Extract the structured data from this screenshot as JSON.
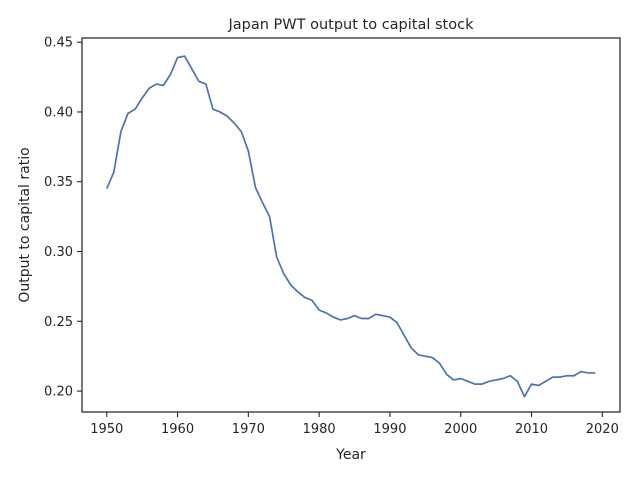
{
  "chart_data": {
    "type": "line",
    "title": "Japan PWT output to capital stock",
    "xlabel": "Year",
    "ylabel": "Output to capital ratio",
    "xlim": [
      1946.5,
      2022.5
    ],
    "ylim": [
      0.185,
      0.453
    ],
    "xticks": [
      1950,
      1960,
      1970,
      1980,
      1990,
      2000,
      2010,
      2020
    ],
    "yticks": [
      0.2,
      0.25,
      0.3,
      0.35,
      0.4,
      0.45
    ],
    "ytick_labels": [
      "0.20",
      "0.25",
      "0.30",
      "0.35",
      "0.40",
      "0.45"
    ],
    "grid": false,
    "series": [
      {
        "color": "#4c72b0",
        "x": [
          1950,
          1951,
          1952,
          1953,
          1954,
          1955,
          1956,
          1957,
          1958,
          1959,
          1960,
          1961,
          1962,
          1963,
          1964,
          1965,
          1966,
          1967,
          1968,
          1969,
          1970,
          1971,
          1972,
          1973,
          1974,
          1975,
          1976,
          1977,
          1978,
          1979,
          1980,
          1981,
          1982,
          1983,
          1984,
          1985,
          1986,
          1987,
          1988,
          1989,
          1990,
          1991,
          1992,
          1993,
          1994,
          1995,
          1996,
          1997,
          1998,
          1999,
          2000,
          2001,
          2002,
          2003,
          2004,
          2005,
          2006,
          2007,
          2008,
          2009,
          2010,
          2011,
          2012,
          2013,
          2014,
          2015,
          2016,
          2017,
          2018,
          2019
        ],
        "y": [
          0.345,
          0.357,
          0.386,
          0.399,
          0.402,
          0.41,
          0.417,
          0.42,
          0.419,
          0.427,
          0.439,
          0.44,
          0.431,
          0.422,
          0.42,
          0.402,
          0.4,
          0.397,
          0.392,
          0.386,
          0.372,
          0.346,
          0.335,
          0.325,
          0.296,
          0.284,
          0.276,
          0.271,
          0.267,
          0.265,
          0.258,
          0.256,
          0.253,
          0.251,
          0.252,
          0.254,
          0.252,
          0.252,
          0.255,
          0.254,
          0.253,
          0.249,
          0.24,
          0.231,
          0.226,
          0.225,
          0.224,
          0.22,
          0.212,
          0.208,
          0.209,
          0.207,
          0.205,
          0.205,
          0.207,
          0.208,
          0.209,
          0.211,
          0.207,
          0.196,
          0.205,
          0.204,
          0.207,
          0.21,
          0.21,
          0.211,
          0.211,
          0.214,
          0.213,
          0.213
        ]
      }
    ]
  }
}
